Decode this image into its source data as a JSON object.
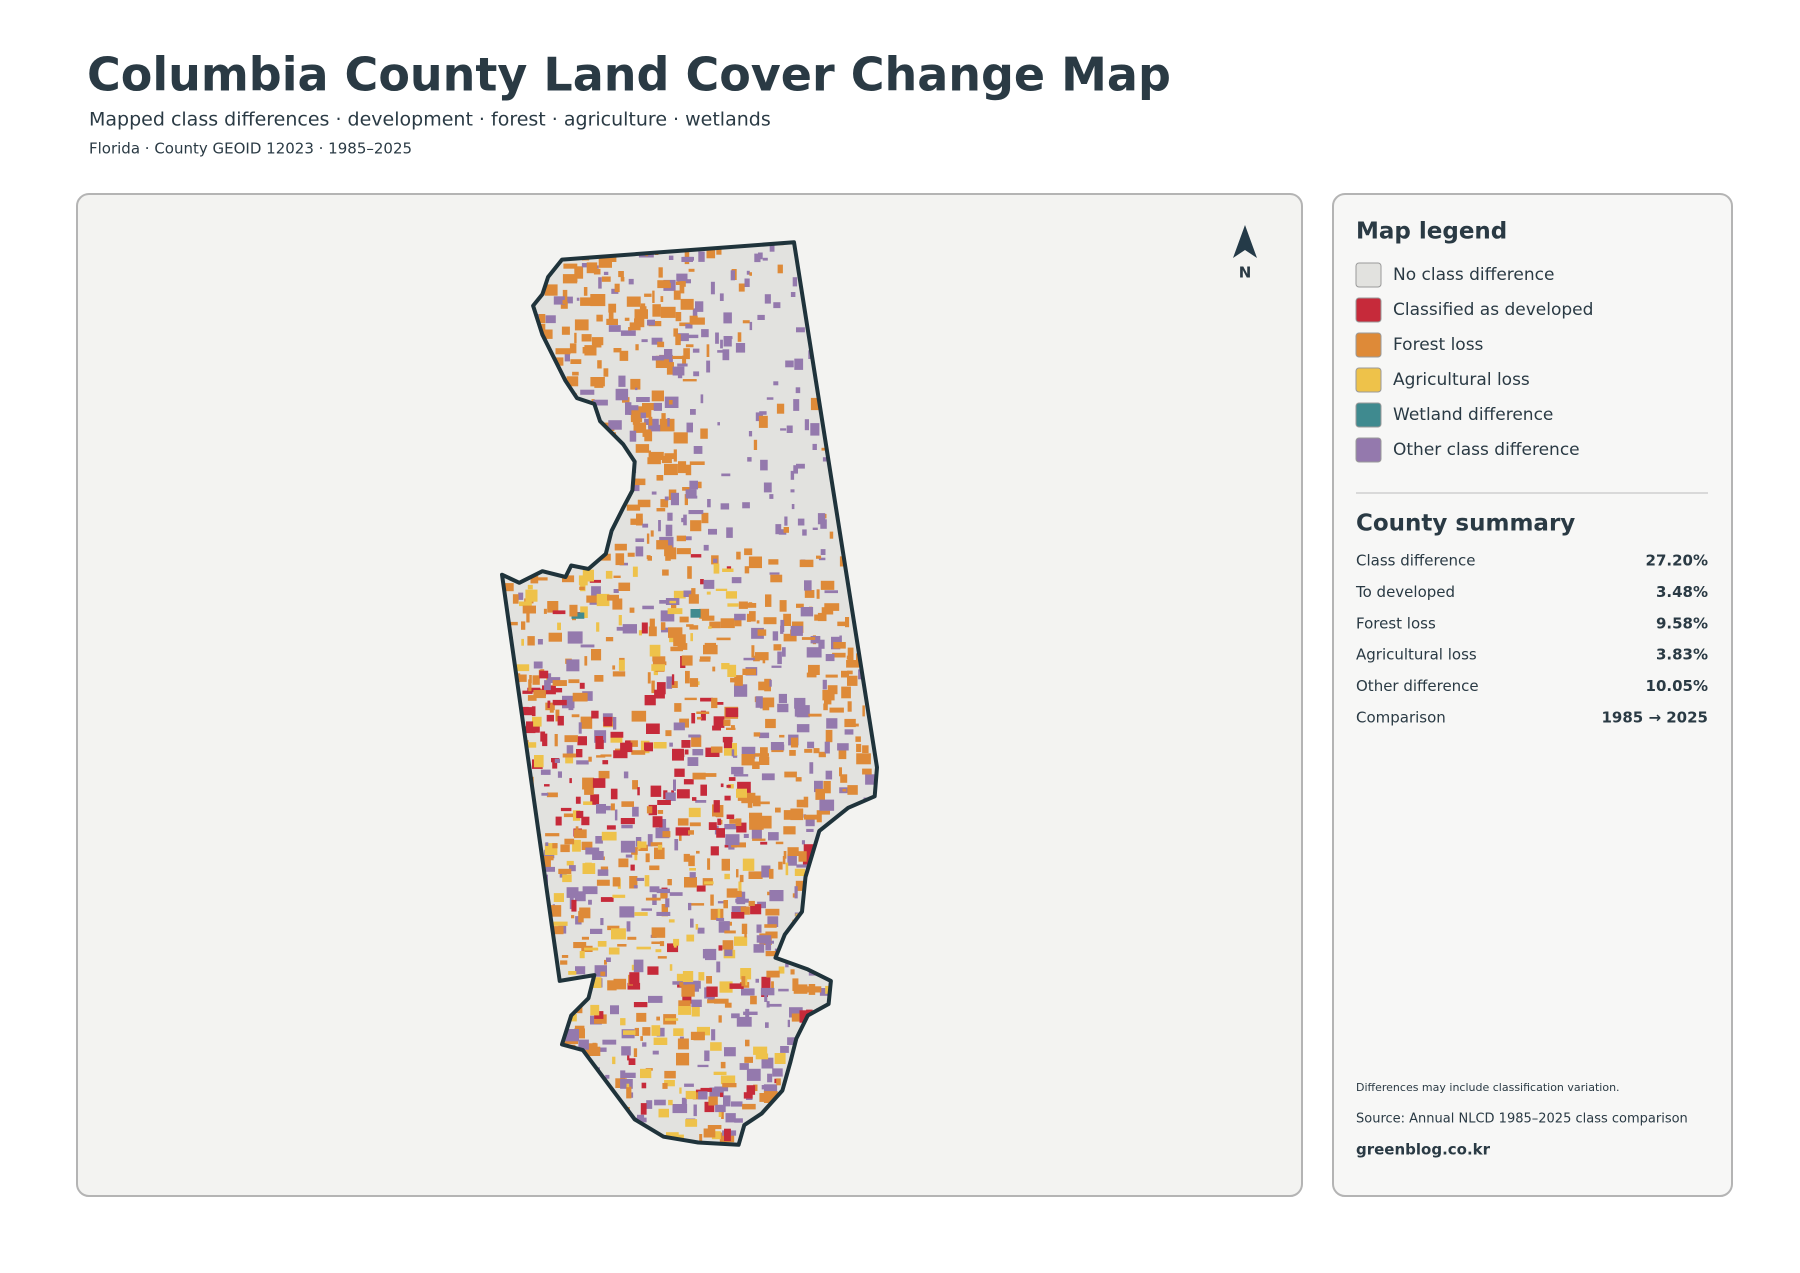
{
  "header": {
    "title": "Columbia County Land Cover Change Map",
    "subtitle": "Mapped class differences · development · forest · agriculture · wetlands",
    "meta": "Florida · County GEOID 12023 · 1985–2025"
  },
  "map": {
    "north_label": "N"
  },
  "legend": {
    "title": "Map legend",
    "items": [
      {
        "label": "No class difference",
        "color": "#e2e2df"
      },
      {
        "label": "Classified as developed",
        "color": "#c62a3a"
      },
      {
        "label": "Forest loss",
        "color": "#de8a38"
      },
      {
        "label": "Agricultural loss",
        "color": "#eec24a"
      },
      {
        "label": "Wetland difference",
        "color": "#3f8a8f"
      },
      {
        "label": "Other class difference",
        "color": "#9479ad"
      }
    ]
  },
  "summary": {
    "title": "County summary",
    "rows": [
      {
        "label": "Class difference",
        "value": "27.20%"
      },
      {
        "label": "To developed",
        "value": "3.48%"
      },
      {
        "label": "Forest loss",
        "value": "9.58%"
      },
      {
        "label": "Agricultural loss",
        "value": "3.83%"
      },
      {
        "label": "Other difference",
        "value": "10.05%"
      },
      {
        "label": "Comparison",
        "value": "1985 → 2025"
      }
    ]
  },
  "footer": {
    "note": "Differences may include classification variation.",
    "source": "Source: Annual NLCD 1985–2025 class comparison",
    "site": "greenblog.co.kr"
  }
}
